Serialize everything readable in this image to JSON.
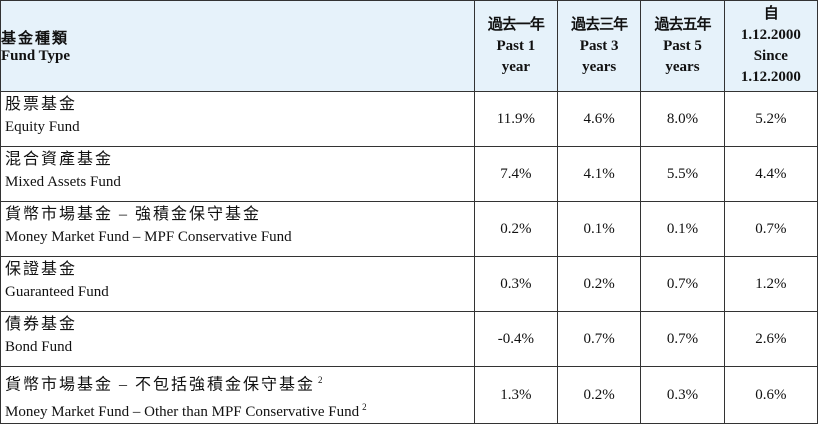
{
  "header": {
    "fund_type_zh": "基金種類",
    "fund_type_en": "Fund Type",
    "periods": [
      {
        "zh": "過去一年",
        "en1": "Past 1",
        "en2": "year"
      },
      {
        "zh": "過去三年",
        "en1": "Past 3",
        "en2": "years"
      },
      {
        "zh": "過去五年",
        "en1": "Past 5",
        "en2": "years"
      }
    ],
    "since": {
      "zh": "自",
      "line1": "1.12.2000",
      "line2": "Since",
      "line3": "1.12.2000"
    }
  },
  "rows": [
    {
      "zh": "股票基金",
      "en": "Equity Fund",
      "sup": "",
      "values": [
        "11.9%",
        "4.6%",
        "8.0%",
        "5.2%"
      ]
    },
    {
      "zh": "混合資產基金",
      "en": "Mixed Assets Fund",
      "sup": "",
      "values": [
        "7.4%",
        "4.1%",
        "5.5%",
        "4.4%"
      ]
    },
    {
      "zh": "貨幣市場基金 – 強積金保守基金",
      "en": "Money Market Fund – MPF Conservative Fund",
      "sup": "",
      "values": [
        "0.2%",
        "0.1%",
        "0.1%",
        "0.7%"
      ]
    },
    {
      "zh": "保證基金",
      "en": "Guaranteed Fund",
      "sup": "",
      "values": [
        "0.3%",
        "0.2%",
        "0.7%",
        "1.2%"
      ]
    },
    {
      "zh": "債券基金",
      "en": "Bond Fund",
      "sup": "",
      "values": [
        "-0.4%",
        "0.7%",
        "0.7%",
        "2.6%"
      ]
    },
    {
      "zh": "貨幣市場基金 – 不包括強積金保守基金",
      "en": "Money Market Fund – Other than MPF Conservative Fund",
      "sup": "2",
      "values": [
        "1.3%",
        "0.2%",
        "0.3%",
        "0.6%"
      ]
    }
  ]
}
